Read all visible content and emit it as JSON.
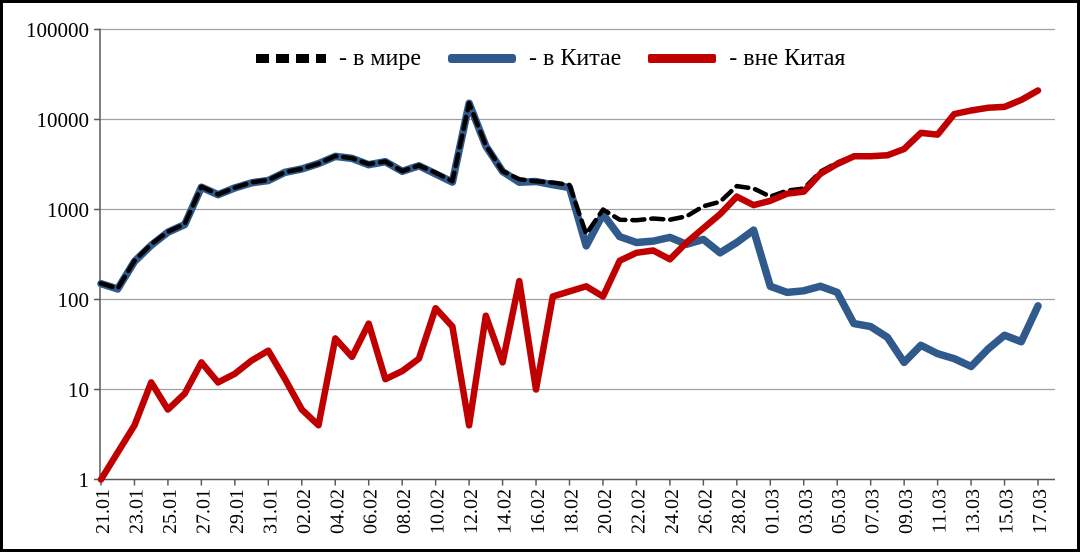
{
  "chart_data": {
    "type": "line",
    "title": "",
    "y_scale": "log",
    "ylim": [
      1,
      100000
    ],
    "y_ticks": [
      1,
      10,
      100,
      1000,
      10000,
      100000
    ],
    "grid": "horizontal",
    "x_tick_labels": [
      "21.01",
      "23.01",
      "25.01",
      "27.01",
      "29.01",
      "31.01",
      "02.02",
      "04.02",
      "06.02",
      "08.02",
      "10.02",
      "12.02",
      "14.02",
      "16.02",
      "18.02",
      "20.02",
      "22.02",
      "24.02",
      "26.02",
      "28.02",
      "01.03",
      "03.03",
      "05.03",
      "07.03",
      "09.03",
      "11.03",
      "13.03",
      "15.03",
      "17.03"
    ],
    "x": [
      "21.01",
      "22.01",
      "23.01",
      "24.01",
      "25.01",
      "26.01",
      "27.01",
      "28.01",
      "29.01",
      "30.01",
      "31.01",
      "01.02",
      "02.02",
      "03.02",
      "04.02",
      "05.02",
      "06.02",
      "07.02",
      "08.02",
      "09.02",
      "10.02",
      "11.02",
      "12.02",
      "13.02",
      "14.02",
      "15.02",
      "16.02",
      "17.02",
      "18.02",
      "19.02",
      "20.02",
      "21.02",
      "22.02",
      "23.02",
      "24.02",
      "25.02",
      "26.02",
      "27.02",
      "28.02",
      "29.02",
      "01.03",
      "02.03",
      "03.03",
      "04.03",
      "05.03",
      "06.03",
      "07.03",
      "08.03",
      "09.03",
      "10.03",
      "11.03",
      "12.03",
      "13.03",
      "14.03",
      "15.03",
      "16.03",
      "17.03"
    ],
    "series": [
      {
        "name": "в мире",
        "color": "#000000",
        "style": "dashed",
        "width": 4.5,
        "values": [
          151,
          133,
          269,
          412,
          566,
          689,
          1791,
          1471,
          1752,
          2003,
          2129,
          2603,
          2835,
          3239,
          3930,
          3720,
          3197,
          3414,
          2672,
          3084,
          2564,
          2065,
          15156,
          5156,
          2661,
          2169,
          2058,
          1994,
          1872,
          534,
          997,
          770,
          760,
          795,
          770,
          840,
          1085,
          1220,
          1820,
          1710,
          1390,
          1620,
          1705,
          2640,
          3320,
          3954,
          3950,
          4038,
          4720,
          7131,
          6825,
          11522,
          12618,
          13528,
          13840,
          16534,
          21085
        ]
      },
      {
        "name": "в Китае",
        "color": "#315A8C",
        "style": "solid",
        "width": 7.5,
        "values": [
          150,
          131,
          265,
          400,
          560,
          680,
          1771,
          1459,
          1737,
          1982,
          2102,
          2590,
          2829,
          3235,
          3893,
          3697,
          3143,
          3401,
          2656,
          3062,
          2484,
          2015,
          15152,
          5090,
          2641,
          2009,
          2048,
          1886,
          1749,
          394,
          889,
          500,
          430,
          445,
          490,
          410,
          465,
          330,
          430,
          590,
          140,
          120,
          125,
          140,
          120,
          54,
          50,
          38,
          20,
          31,
          25,
          22,
          18,
          28,
          40,
          34,
          85
        ]
      },
      {
        "name": "вне Китая",
        "color": "#C00000",
        "style": "solid",
        "width": 6.5,
        "values": [
          1,
          2,
          4,
          12,
          6,
          9,
          20,
          12,
          15,
          21,
          27,
          13,
          6,
          4,
          37,
          23,
          54,
          13,
          16,
          22,
          80,
          50,
          4,
          66,
          20,
          160,
          10,
          108,
          123,
          140,
          108,
          270,
          330,
          350,
          280,
          430,
          620,
          890,
          1390,
          1120,
          1250,
          1500,
          1580,
          2500,
          3200,
          3900,
          3900,
          4000,
          4700,
          7100,
          6800,
          11500,
          12600,
          13500,
          13800,
          16500,
          21000
        ]
      }
    ],
    "legend": {
      "position": "top",
      "items": [
        {
          "label": "- в мире",
          "swatch": "black-dashed-line"
        },
        {
          "label": "- в Китае",
          "swatch": "blue-line"
        },
        {
          "label": "- вне Китая",
          "swatch": "red-line"
        }
      ]
    }
  },
  "colors": {
    "world_line": "#000000",
    "china_line": "#315A8C",
    "outside_line": "#C00000",
    "gridline": "#A0A0A0",
    "axis": "#595959",
    "text": "#000000",
    "frame_border": "#000000"
  }
}
